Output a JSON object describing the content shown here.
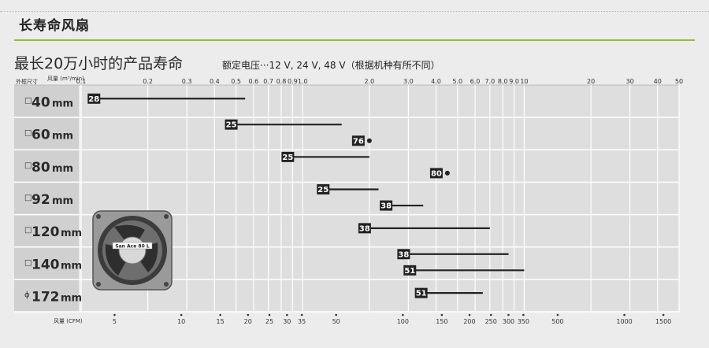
{
  "section_title": "长寿命风扇",
  "main_title": "最长20万小时的产品寿命",
  "voltage_note": "额定电压···12 V, 24 V, 48 V（根据机种有所不同）",
  "colors": {
    "grid_bg": "#dedede",
    "label_bg": "#d0d0d0",
    "accent_green": "#9cb93a",
    "bar": "#222222",
    "badge": "#222222"
  },
  "chart_data": {
    "type": "range-bar",
    "scale": "log",
    "x_top": {
      "label": "风量",
      "unit": "(m³/min)",
      "ticks": [
        "0.1",
        "0.2",
        "0.3",
        "0.4",
        "0.5",
        "0.6",
        "0.7",
        "0.8",
        "0.9",
        "1.0",
        "2.0",
        "3.0",
        "4.0",
        "5.0",
        "6.0",
        "7.0",
        "8.0",
        "9.0",
        "10",
        "20",
        "30",
        "40",
        "50"
      ],
      "range": [
        0.1,
        50
      ]
    },
    "x_bottom": {
      "label": "风量",
      "unit": "(CFM)",
      "ticks": [
        "5",
        "10",
        "15",
        "20",
        "25",
        "30",
        "35",
        "50",
        "100",
        "150",
        "200",
        "250",
        "300",
        "350",
        "500",
        "1000",
        "1500"
      ]
    },
    "y_header": "外框尺寸",
    "rows": [
      {
        "symbol": "□",
        "size": "40",
        "unit": "mm"
      },
      {
        "symbol": "□",
        "size": "60",
        "unit": "mm"
      },
      {
        "symbol": "□",
        "size": "80",
        "unit": "mm"
      },
      {
        "symbol": "□",
        "size": "92",
        "unit": "mm"
      },
      {
        "symbol": "□",
        "size": "120",
        "unit": "mm"
      },
      {
        "symbol": "□",
        "size": "140",
        "unit": "mm"
      },
      {
        "symbol": "ϕ",
        "size": "172",
        "unit": "mm"
      }
    ],
    "series": [
      {
        "row": 0,
        "label": "28",
        "from": 0.12,
        "to": 0.55
      },
      {
        "row": 1,
        "label": "25",
        "from": 0.5,
        "to": 1.5
      },
      {
        "row": 1,
        "label": "76",
        "point": 2.0
      },
      {
        "row": 2,
        "label": "25",
        "from": 0.9,
        "to": 2.0
      },
      {
        "row": 2,
        "label": "80",
        "point": 4.5
      },
      {
        "row": 3,
        "label": "25",
        "from": 1.3,
        "to": 2.2
      },
      {
        "row": 3,
        "label": "38",
        "from": 2.5,
        "to": 3.5
      },
      {
        "row": 4,
        "label": "38",
        "from": 2.0,
        "to": 7.0
      },
      {
        "row": 5,
        "label": "38",
        "from": 3.0,
        "to": 8.5
      },
      {
        "row": 5,
        "label": "51",
        "from": 3.2,
        "to": 10.0
      },
      {
        "row": 6,
        "label": "51",
        "from": 3.6,
        "to": 6.5
      }
    ],
    "product_image_label": "San Ace 80 L"
  }
}
